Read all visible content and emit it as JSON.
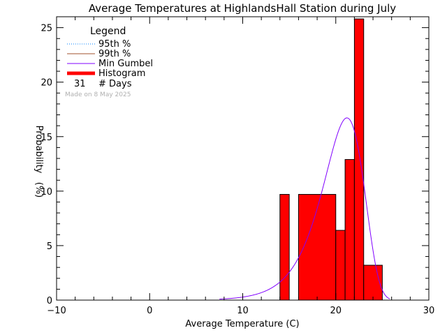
{
  "chart_data": {
    "type": "bar",
    "title": "Average Temperatures at HighlandsHall Station during July",
    "xlabel": "Average Temperature (C)",
    "ylabel_top": "Probability",
    "ylabel_bottom": "(%)",
    "xlim": [
      -10,
      30
    ],
    "ylim": [
      0,
      26
    ],
    "xticks": [
      -10,
      0,
      10,
      20,
      30
    ],
    "yticks": [
      0,
      5,
      10,
      15,
      20,
      25
    ],
    "histogram": {
      "name": "Histogram",
      "color": "#ff0000",
      "bins": [
        {
          "x0": 14.0,
          "x1": 15.0,
          "value": 9.7
        },
        {
          "x0": 16.0,
          "x1": 20.0,
          "value": 9.7
        },
        {
          "x0": 20.0,
          "x1": 21.0,
          "value": 6.4
        },
        {
          "x0": 21.0,
          "x1": 22.0,
          "value": 12.9
        },
        {
          "x0": 22.0,
          "x1": 23.0,
          "value": 25.8
        },
        {
          "x0": 23.0,
          "x1": 25.0,
          "value": 3.2
        }
      ]
    },
    "gumbel": {
      "name": "Min Gumbel",
      "color": "#8000ff",
      "mode": 21.2,
      "scale": 2.2,
      "x_range": [
        7.5,
        25.8
      ]
    },
    "legend": {
      "title": "Legend",
      "items": [
        {
          "label": "95th %",
          "color": "#0080ff",
          "style": "dotted"
        },
        {
          "label": "99th %",
          "color": "#a0522d",
          "style": "solid"
        },
        {
          "label": "Min Gumbel",
          "color": "#8000ff",
          "style": "solid"
        },
        {
          "label": "Histogram",
          "color": "#ff0000",
          "style": "thick"
        }
      ],
      "days_count": "31",
      "days_label": "# Days"
    },
    "footnote": "Made on 8 May 2025"
  }
}
